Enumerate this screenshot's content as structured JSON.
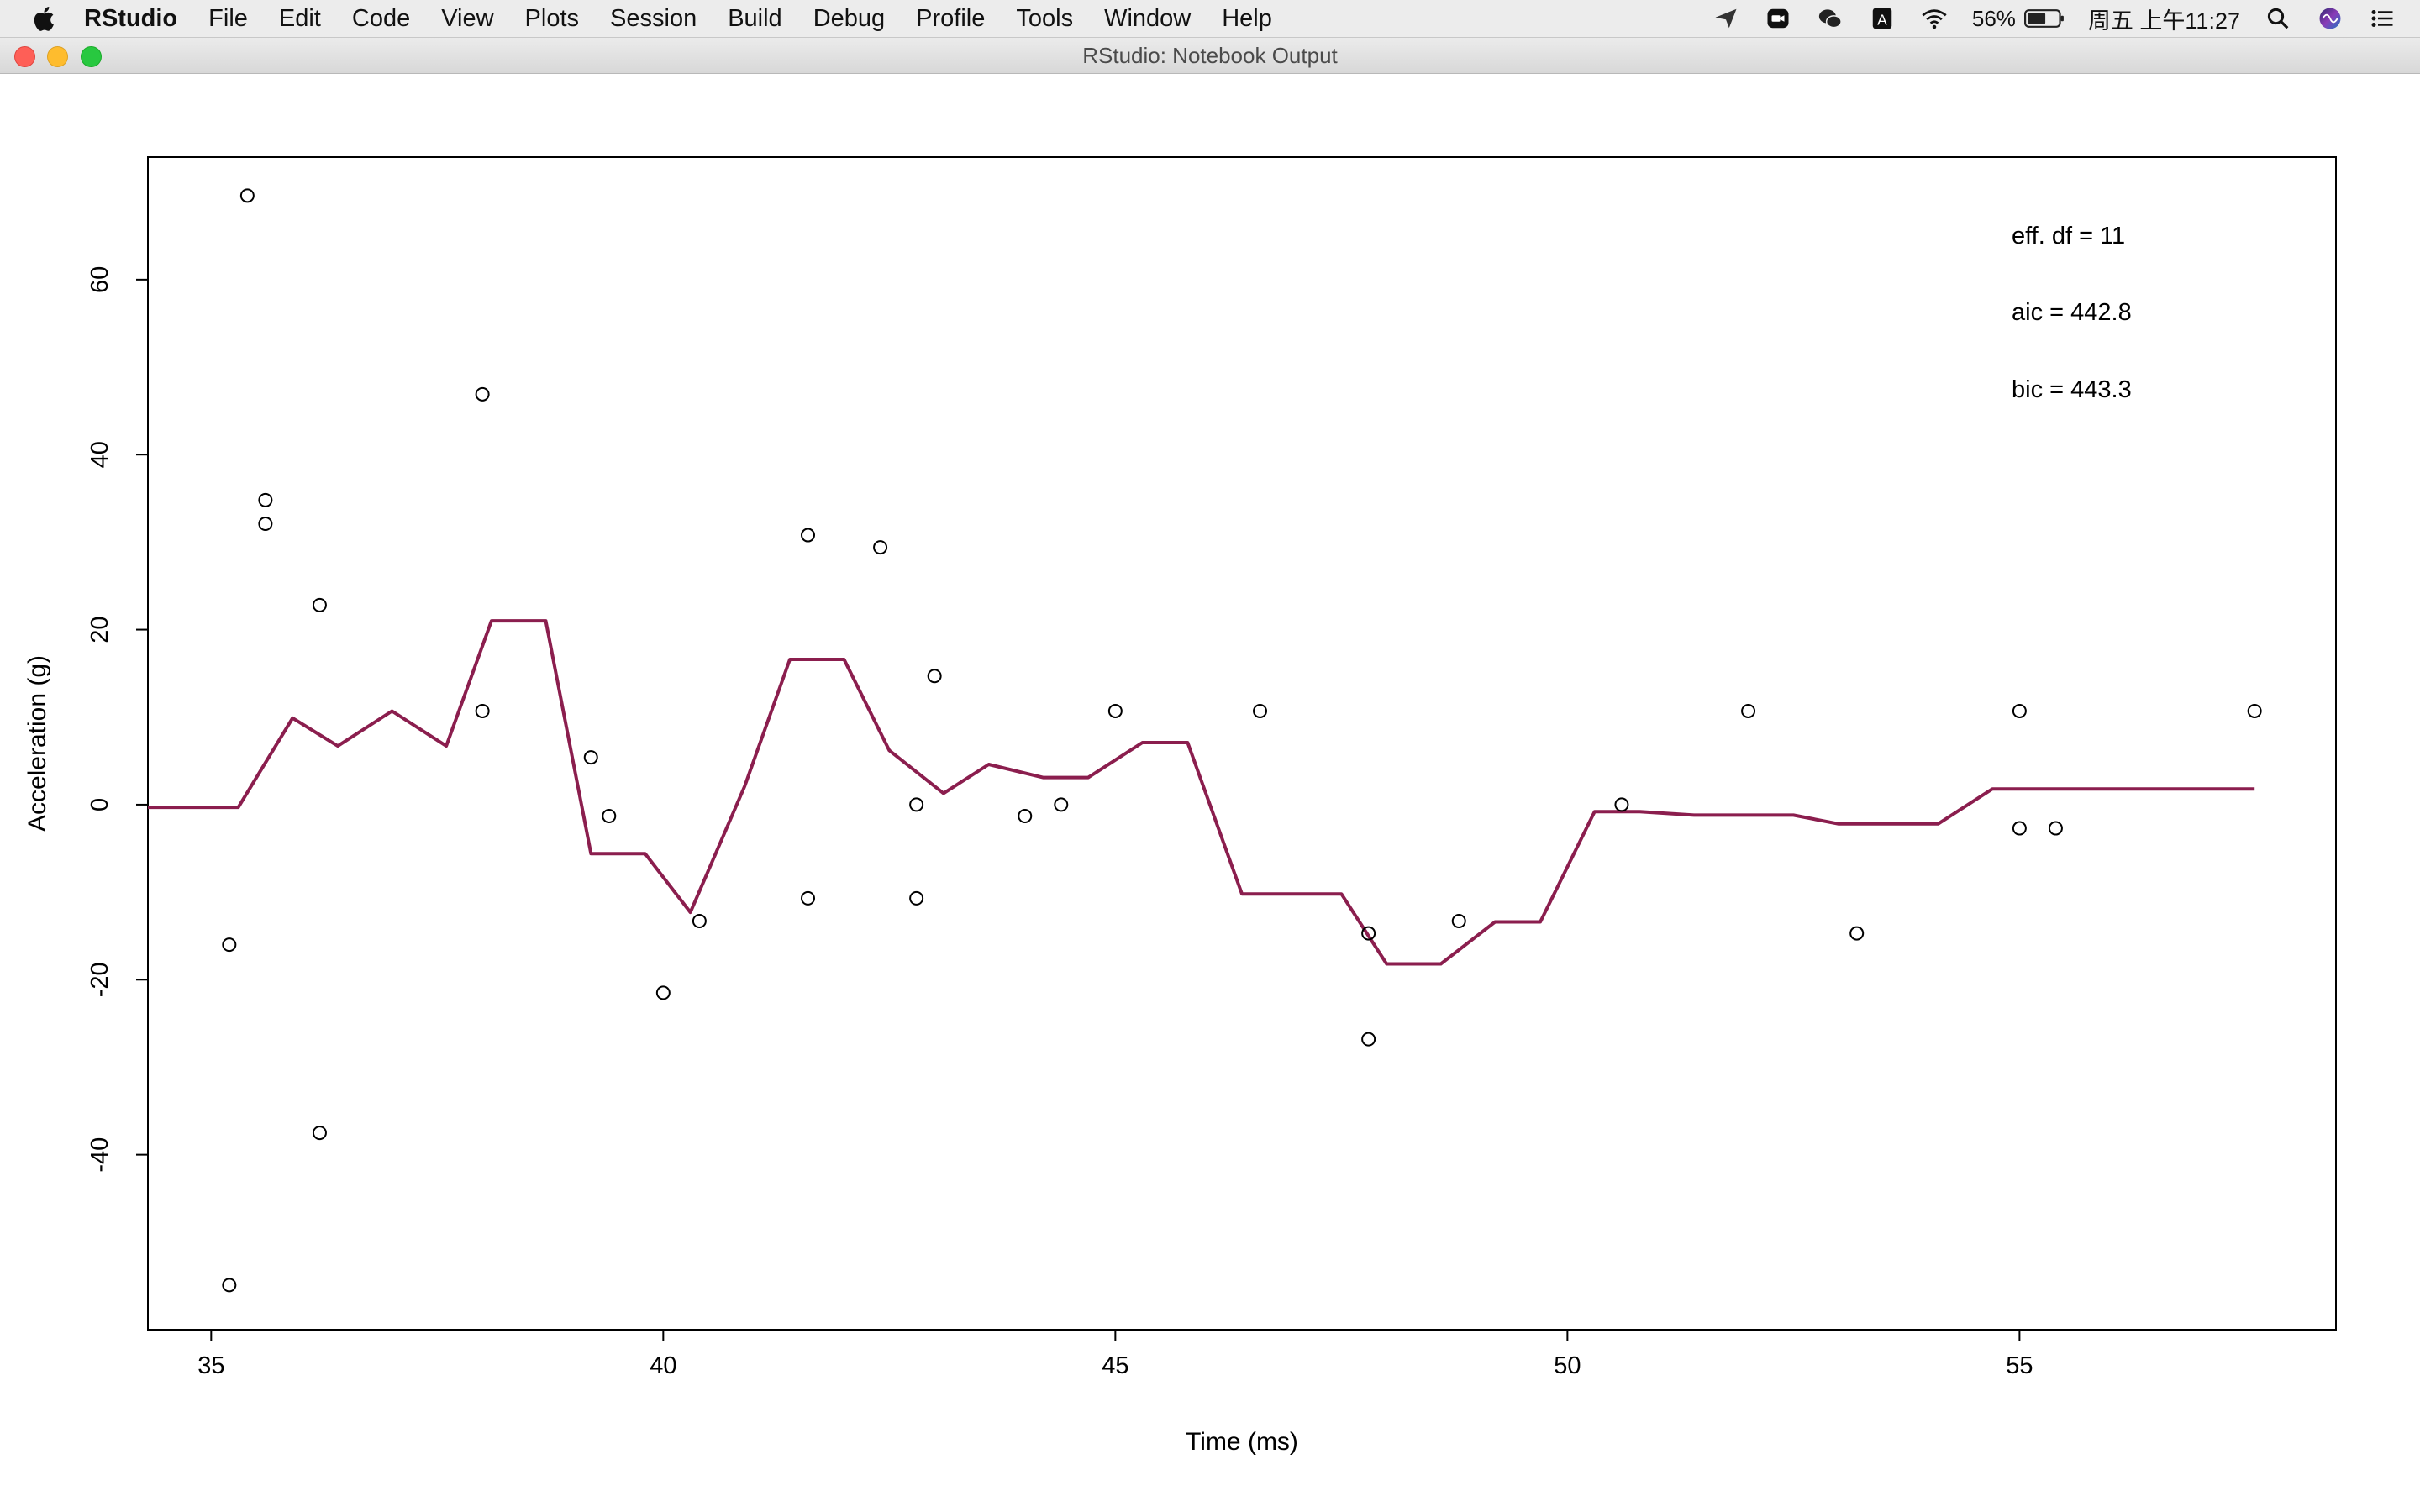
{
  "menubar": {
    "app_name": "RStudio",
    "items": [
      "File",
      "Edit",
      "Code",
      "View",
      "Plots",
      "Session",
      "Build",
      "Debug",
      "Profile",
      "Tools",
      "Window",
      "Help"
    ],
    "battery": "56%",
    "clock": "周五 上午11:27"
  },
  "window": {
    "title": "RStudio: Notebook Output"
  },
  "colors": {
    "curve": "#8b1e4e",
    "points": "#000000",
    "frame": "#000000"
  },
  "chart_data": {
    "type": "scatter",
    "xlabel": "Time (ms)",
    "ylabel": "Acceleration (g)",
    "xlim": [
      34.3,
      58.5
    ],
    "ylim": [
      -60,
      74
    ],
    "xticks": [
      35,
      40,
      45,
      50,
      55
    ],
    "yticks": [
      -40,
      -20,
      0,
      20,
      40,
      60
    ],
    "annotations": [
      "eff. df = 11",
      "aic = 442.8",
      "bic = 443.3"
    ],
    "points": {
      "x": [
        35.2,
        35.2,
        35.4,
        35.6,
        35.6,
        36.2,
        36.2,
        38.0,
        38.0,
        39.2,
        39.4,
        40.0,
        40.4,
        41.6,
        41.6,
        42.4,
        42.8,
        42.8,
        43.0,
        44.0,
        44.4,
        45.0,
        46.6,
        47.8,
        47.8,
        48.8,
        50.6,
        52.0,
        53.2,
        55.0,
        55.0,
        55.4,
        57.6
      ],
      "y": [
        -16.0,
        -54.9,
        69.6,
        34.8,
        32.1,
        22.8,
        -37.5,
        46.9,
        10.7,
        5.4,
        -1.3,
        -21.5,
        -13.3,
        30.8,
        -10.7,
        29.4,
        0.0,
        -10.7,
        14.7,
        -1.3,
        0.0,
        10.7,
        10.7,
        -26.8,
        -14.7,
        -13.3,
        0.0,
        10.7,
        -14.7,
        10.7,
        -2.7,
        -2.7,
        10.7
      ]
    },
    "series": [
      {
        "x": [
          34.3,
          35.3,
          35.9,
          36.4,
          37.0,
          37.6,
          38.1,
          38.7,
          39.2,
          39.8,
          40.3,
          40.9,
          41.4,
          42.0,
          42.5,
          43.1,
          43.6,
          44.2,
          44.7,
          45.3,
          45.8,
          46.4,
          46.9,
          47.5,
          48.0,
          48.6,
          49.2,
          49.7,
          50.3,
          50.8,
          51.4,
          51.9,
          52.5,
          53.0,
          53.6,
          54.1,
          54.7,
          55.2,
          55.8,
          56.3,
          56.9,
          57.4,
          57.6
        ],
        "y": [
          -0.3,
          -0.3,
          9.9,
          6.7,
          10.7,
          6.7,
          21.0,
          21.0,
          -5.6,
          -5.6,
          -12.3,
          2.1,
          16.6,
          16.6,
          6.2,
          1.3,
          4.6,
          3.1,
          3.1,
          7.1,
          7.1,
          -10.2,
          -10.2,
          -10.2,
          -18.2,
          -18.2,
          -13.4,
          -13.4,
          -0.8,
          -0.8,
          -1.2,
          -1.2,
          -1.2,
          -2.2,
          -2.2,
          -2.2,
          1.8,
          1.8,
          1.8,
          1.8,
          1.8,
          1.8,
          1.8
        ]
      }
    ]
  }
}
